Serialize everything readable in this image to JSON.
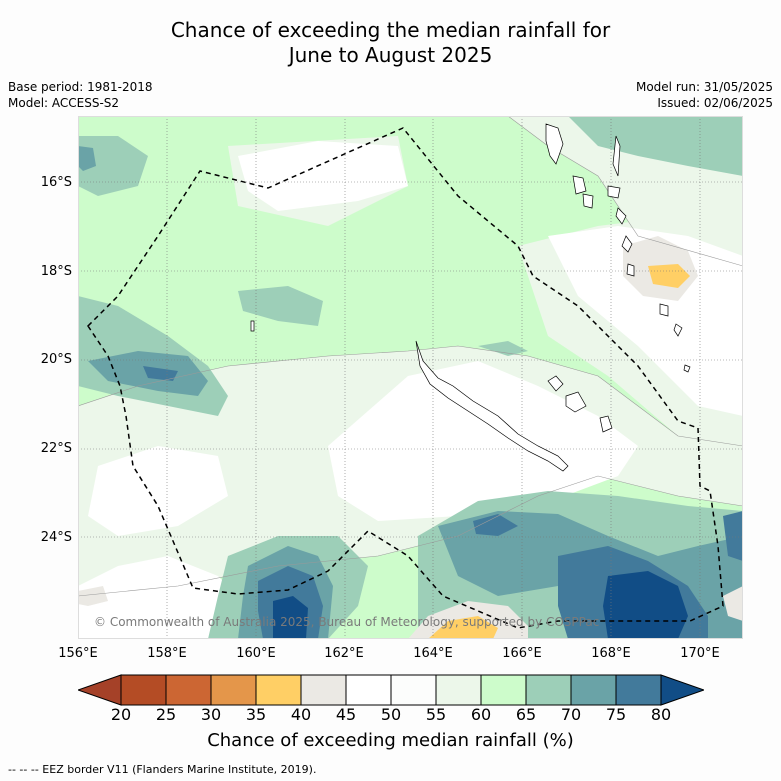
{
  "title": {
    "line1": "Chance of exceeding the median rainfall for",
    "line2": "June to August 2025"
  },
  "meta": {
    "base_period": "Base period: 1981-2018",
    "model": "Model: ACCESS-S2",
    "model_run": "Model run: 31/05/2025",
    "issued": "Issued: 02/06/2025"
  },
  "map": {
    "copyright": "© Commonwealth of Australia 2025, Bureau of Meteorology, supported by COSPPac",
    "lat_labels": [
      "16°S",
      "18°S",
      "20°S",
      "22°S",
      "24°S"
    ],
    "lon_labels": [
      "156°E",
      "158°E",
      "160°E",
      "162°E",
      "164°E",
      "166°E",
      "168°E",
      "170°E"
    ],
    "colors": {
      "background": "#ffffff",
      "p55_60": "#ecf7ea",
      "p60_65": "#cdfccb",
      "p65_70": "#9dcfb8",
      "p70_75": "#6aa3a7",
      "p75_80": "#427a9b",
      "p80_plus": "#114d86",
      "p40_45": "#ebe9e4",
      "p35_40": "#ffcf65"
    }
  },
  "colorbar": {
    "label": "Chance of exceeding median rainfall (%)",
    "ticks": [
      "20",
      "25",
      "30",
      "35",
      "40",
      "45",
      "50",
      "55",
      "60",
      "65",
      "70",
      "75",
      "80"
    ],
    "colors": [
      "#a54128",
      "#b44c25",
      "#cc6633",
      "#e4964a",
      "#ffcf65",
      "#ebe9e4",
      "#ffffff",
      "#fcfdfc",
      "#ecf7ea",
      "#cdfccb",
      "#9dcfb8",
      "#6aa3a7",
      "#427a9b",
      "#114d86"
    ]
  },
  "legend": {
    "text": "-- -- -- EEZ border V11 (Flanders Marine Institute, 2019)."
  }
}
